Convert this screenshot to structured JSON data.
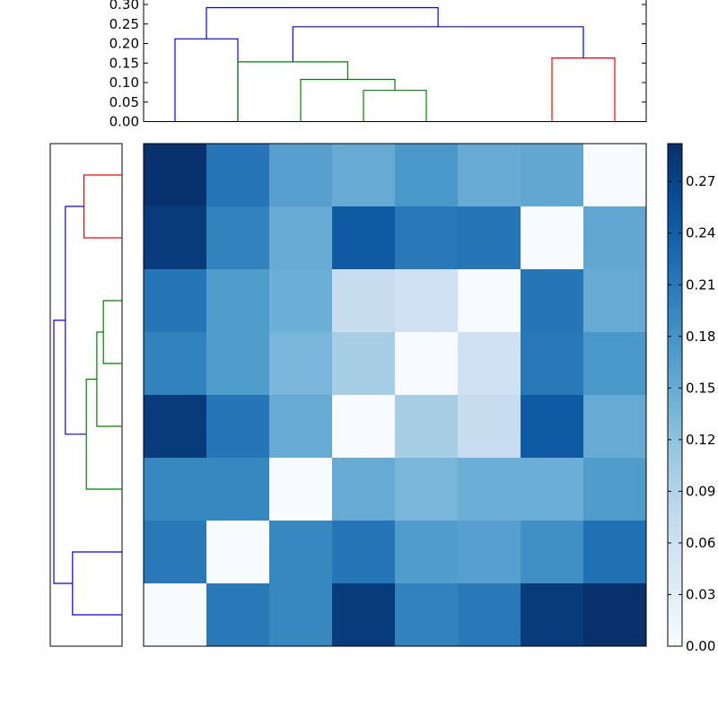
{
  "chart_data": [
    {
      "type": "dendrogram",
      "orientation": "top",
      "ylim": [
        0,
        0.31
      ],
      "yticks": [
        0.0,
        0.05,
        0.1,
        0.15,
        0.2,
        0.25,
        0.3
      ],
      "ytick_labels": [
        "0.00",
        "0.05",
        "0.10",
        "0.15",
        "0.20",
        "0.25",
        "0.30"
      ],
      "links": [
        {
          "color": "#0000ff",
          "x": [
            0.5,
            0.5,
            1.5,
            1.5
          ],
          "y": [
            0,
            0.212,
            0.212,
            0
          ]
        },
        {
          "color": "#008000",
          "x": [
            3.5,
            3.5,
            4.5,
            4.5
          ],
          "y": [
            0,
            0.08,
            0.08,
            0
          ]
        },
        {
          "color": "#008000",
          "x": [
            2.5,
            2.5,
            4.0,
            4.0
          ],
          "y": [
            0,
            0.108,
            0.108,
            0.08
          ]
        },
        {
          "color": "#008000",
          "x": [
            1.5,
            1.5,
            3.25,
            3.25
          ],
          "y": [
            0,
            0.153,
            0.153,
            0.108
          ]
        },
        {
          "color": "#ff0000",
          "x": [
            6.5,
            6.5,
            7.5,
            7.5
          ],
          "y": [
            0,
            0.163,
            0.163,
            0
          ]
        },
        {
          "color": "#0000ff",
          "x": [
            2.375,
            2.375,
            7.0,
            7.0
          ],
          "y": [
            0.153,
            0.243,
            0.243,
            0.163
          ]
        },
        {
          "color": "#0000ff",
          "x": [
            1.0,
            1.0,
            4.6875,
            4.6875
          ],
          "y": [
            0.212,
            0.292,
            0.292,
            0.243
          ]
        }
      ]
    },
    {
      "type": "dendrogram",
      "orientation": "left",
      "links": [
        {
          "color": "#ff0000",
          "row": [
            0.5,
            0.5,
            1.5,
            1.5
          ],
          "h": [
            0,
            0.163,
            0.163,
            0
          ]
        },
        {
          "color": "#008000",
          "row": [
            2.5,
            2.5,
            3.5,
            3.5
          ],
          "h": [
            0,
            0.08,
            0.08,
            0
          ]
        },
        {
          "color": "#008000",
          "row": [
            3.0,
            3.0,
            4.5,
            4.5
          ],
          "h": [
            0.08,
            0.108,
            0.108,
            0
          ]
        },
        {
          "color": "#008000",
          "row": [
            3.75,
            3.75,
            5.5,
            5.5
          ],
          "h": [
            0.108,
            0.153,
            0.153,
            0
          ]
        },
        {
          "color": "#0000ff",
          "row": [
            1.0,
            1.0,
            4.625,
            4.625
          ],
          "h": [
            0.163,
            0.243,
            0.243,
            0.153
          ]
        },
        {
          "color": "#0000ff",
          "row": [
            6.5,
            6.5,
            7.5,
            7.5
          ],
          "h": [
            0,
            0.212,
            0.212,
            0
          ]
        },
        {
          "color": "#0000ff",
          "row": [
            2.8125,
            2.8125,
            7.0,
            7.0
          ],
          "h": [
            0.243,
            0.292,
            0.292,
            0.212
          ]
        }
      ]
    },
    {
      "type": "heatmap",
      "colormap": "Blues",
      "vmin": 0,
      "vmax": 0.292,
      "values": [
        [
          0.29,
          0.215,
          0.165,
          0.15,
          0.175,
          0.15,
          0.155,
          0.0
        ],
        [
          0.28,
          0.2,
          0.15,
          0.245,
          0.21,
          0.215,
          0.0,
          0.155
        ],
        [
          0.215,
          0.17,
          0.145,
          0.07,
          0.06,
          0.0,
          0.215,
          0.15
        ],
        [
          0.2,
          0.17,
          0.135,
          0.1,
          0.0,
          0.06,
          0.21,
          0.175
        ],
        [
          0.28,
          0.215,
          0.15,
          0.0,
          0.1,
          0.07,
          0.245,
          0.15
        ],
        [
          0.195,
          0.195,
          0.0,
          0.15,
          0.135,
          0.145,
          0.145,
          0.17
        ],
        [
          0.21,
          0.0,
          0.195,
          0.215,
          0.17,
          0.165,
          0.185,
          0.22
        ],
        [
          0.0,
          0.21,
          0.195,
          0.28,
          0.2,
          0.21,
          0.28,
          0.292
        ]
      ]
    },
    {
      "type": "colorbar",
      "colormap": "Blues",
      "vmin": 0,
      "vmax": 0.292,
      "ticks": [
        0.0,
        0.03,
        0.06,
        0.09,
        0.12,
        0.15,
        0.18,
        0.21,
        0.24,
        0.27
      ],
      "tick_labels": [
        "0.00",
        "0.03",
        "0.06",
        "0.09",
        "0.12",
        "0.15",
        "0.18",
        "0.21",
        "0.24",
        "0.27"
      ]
    }
  ]
}
